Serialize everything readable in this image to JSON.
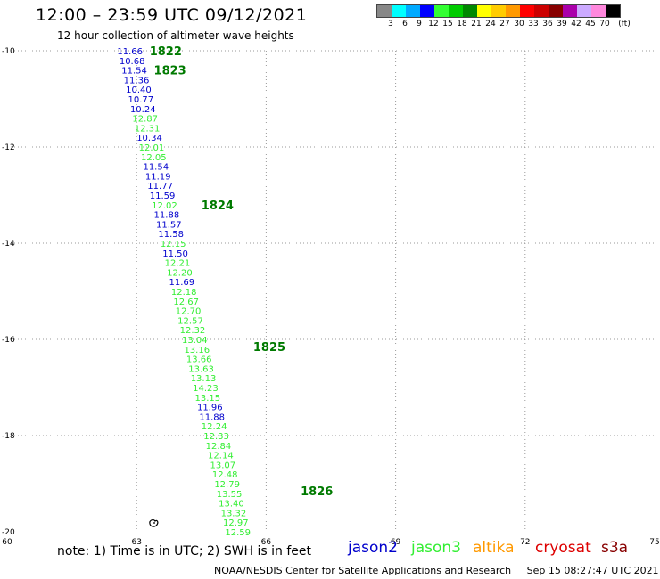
{
  "header": {
    "title": "12:00 – 23:59 UTC 09/12/2021",
    "subtitle": "12 hour collection of altimeter wave heights"
  },
  "scale": {
    "unit": "(ft)",
    "colors": [
      "#888888",
      "#00ffff",
      "#00aaff",
      "#0000ff",
      "#33ff33",
      "#00cc00",
      "#008800",
      "#ffff00",
      "#ffcc00",
      "#ff9900",
      "#ff0000",
      "#cc0000",
      "#880000",
      "#aa00aa",
      "#ccaaff",
      "#ff88dd",
      "#000000"
    ],
    "labels": [
      "3",
      "6",
      "9",
      "12",
      "15",
      "18",
      "21",
      "24",
      "27",
      "30",
      "33",
      "36",
      "39",
      "42",
      "45",
      "70"
    ]
  },
  "axes": {
    "lon_ticks": [
      "60",
      "63",
      "66",
      "69",
      "72",
      "75"
    ],
    "lat_ticks": [
      "-10",
      "-12",
      "-14",
      "-16",
      "-18",
      "-20"
    ]
  },
  "pass_labels": [
    {
      "label": "1822",
      "lon": 63.3,
      "lat": -10.0
    },
    {
      "label": "1823",
      "lon": 63.4,
      "lat": -10.4
    },
    {
      "label": "1824",
      "lon": 64.5,
      "lat": -13.2
    },
    {
      "label": "1825",
      "lon": 65.7,
      "lat": -16.15
    },
    {
      "label": "1826",
      "lon": 66.8,
      "lat": -19.15
    }
  ],
  "readings": [
    {
      "v": "11.66",
      "lon": 62.55,
      "lat": -10.0,
      "sat": "jason2"
    },
    {
      "v": "10.68",
      "lon": 62.6,
      "lat": -10.2,
      "sat": "jason2"
    },
    {
      "v": "11.54",
      "lon": 62.65,
      "lat": -10.4,
      "sat": "jason2"
    },
    {
      "v": "11.36",
      "lon": 62.7,
      "lat": -10.6,
      "sat": "jason2"
    },
    {
      "v": "10.40",
      "lon": 62.75,
      "lat": -10.8,
      "sat": "jason2"
    },
    {
      "v": "10.77",
      "lon": 62.8,
      "lat": -11.0,
      "sat": "jason2"
    },
    {
      "v": "10.24",
      "lon": 62.85,
      "lat": -11.2,
      "sat": "jason2"
    },
    {
      "v": "12.87",
      "lon": 62.9,
      "lat": -11.4,
      "sat": "jason3"
    },
    {
      "v": "12.31",
      "lon": 62.95,
      "lat": -11.6,
      "sat": "jason3"
    },
    {
      "v": "10.34",
      "lon": 63.0,
      "lat": -11.8,
      "sat": "jason2"
    },
    {
      "v": "12.01",
      "lon": 63.05,
      "lat": -12.0,
      "sat": "jason3"
    },
    {
      "v": "12.05",
      "lon": 63.1,
      "lat": -12.2,
      "sat": "jason3"
    },
    {
      "v": "11.54",
      "lon": 63.15,
      "lat": -12.4,
      "sat": "jason2"
    },
    {
      "v": "11.19",
      "lon": 63.2,
      "lat": -12.6,
      "sat": "jason2"
    },
    {
      "v": "11.77",
      "lon": 63.25,
      "lat": -12.8,
      "sat": "jason2"
    },
    {
      "v": "11.59",
      "lon": 63.3,
      "lat": -13.0,
      "sat": "jason2"
    },
    {
      "v": "12.02",
      "lon": 63.35,
      "lat": -13.2,
      "sat": "jason3"
    },
    {
      "v": "11.88",
      "lon": 63.4,
      "lat": -13.4,
      "sat": "jason2"
    },
    {
      "v": "11.57",
      "lon": 63.45,
      "lat": -13.6,
      "sat": "jason2"
    },
    {
      "v": "11.58",
      "lon": 63.5,
      "lat": -13.8,
      "sat": "jason2"
    },
    {
      "v": "12.15",
      "lon": 63.55,
      "lat": -14.0,
      "sat": "jason3"
    },
    {
      "v": "11.50",
      "lon": 63.6,
      "lat": -14.2,
      "sat": "jason2"
    },
    {
      "v": "12.21",
      "lon": 63.65,
      "lat": -14.4,
      "sat": "jason3"
    },
    {
      "v": "12.20",
      "lon": 63.7,
      "lat": -14.6,
      "sat": "jason3"
    },
    {
      "v": "11.69",
      "lon": 63.75,
      "lat": -14.8,
      "sat": "jason2"
    },
    {
      "v": "12.18",
      "lon": 63.8,
      "lat": -15.0,
      "sat": "jason3"
    },
    {
      "v": "12.67",
      "lon": 63.85,
      "lat": -15.2,
      "sat": "jason3"
    },
    {
      "v": "12.70",
      "lon": 63.9,
      "lat": -15.4,
      "sat": "jason3"
    },
    {
      "v": "12.57",
      "lon": 63.95,
      "lat": -15.6,
      "sat": "jason3"
    },
    {
      "v": "12.32",
      "lon": 64.0,
      "lat": -15.8,
      "sat": "jason3"
    },
    {
      "v": "13.04",
      "lon": 64.05,
      "lat": -16.0,
      "sat": "jason3"
    },
    {
      "v": "13.16",
      "lon": 64.1,
      "lat": -16.2,
      "sat": "jason3"
    },
    {
      "v": "13.66",
      "lon": 64.15,
      "lat": -16.4,
      "sat": "jason3"
    },
    {
      "v": "13.63",
      "lon": 64.2,
      "lat": -16.6,
      "sat": "jason3"
    },
    {
      "v": "13.13",
      "lon": 64.25,
      "lat": -16.8,
      "sat": "jason3"
    },
    {
      "v": "14.23",
      "lon": 64.3,
      "lat": -17.0,
      "sat": "jason3"
    },
    {
      "v": "13.15",
      "lon": 64.35,
      "lat": -17.2,
      "sat": "jason3"
    },
    {
      "v": "11.96",
      "lon": 64.4,
      "lat": -17.4,
      "sat": "jason2"
    },
    {
      "v": "11.88",
      "lon": 64.45,
      "lat": -17.6,
      "sat": "jason2"
    },
    {
      "v": "12.24",
      "lon": 64.5,
      "lat": -17.8,
      "sat": "jason3"
    },
    {
      "v": "12.33",
      "lon": 64.55,
      "lat": -18.0,
      "sat": "jason3"
    },
    {
      "v": "12.84",
      "lon": 64.6,
      "lat": -18.2,
      "sat": "jason3"
    },
    {
      "v": "12.14",
      "lon": 64.65,
      "lat": -18.4,
      "sat": "jason3"
    },
    {
      "v": "13.07",
      "lon": 64.7,
      "lat": -18.6,
      "sat": "jason3"
    },
    {
      "v": "12.48",
      "lon": 64.75,
      "lat": -18.8,
      "sat": "jason3"
    },
    {
      "v": "12.79",
      "lon": 64.8,
      "lat": -19.0,
      "sat": "jason3"
    },
    {
      "v": "13.55",
      "lon": 64.85,
      "lat": -19.2,
      "sat": "jason3"
    },
    {
      "v": "13.40",
      "lon": 64.9,
      "lat": -19.4,
      "sat": "jason3"
    },
    {
      "v": "13.32",
      "lon": 64.95,
      "lat": -19.6,
      "sat": "jason3"
    },
    {
      "v": "12.97",
      "lon": 65.0,
      "lat": -19.8,
      "sat": "jason3"
    },
    {
      "v": "12.59",
      "lon": 65.05,
      "lat": -20.0,
      "sat": "jason3"
    }
  ],
  "satellite_colors": {
    "jason2": "#0000cc",
    "jason3": "#33ee33",
    "altika": "#ff9900",
    "cryosat": "#dd0000",
    "s3a": "#880000"
  },
  "legend": {
    "note": "note: 1) Time is in UTC; 2) SWH is in feet",
    "satellites": [
      "jason2",
      "jason3",
      "altika",
      "cryosat",
      "s3a"
    ]
  },
  "footer": {
    "credit": "NOAA/NESDIS Center for Satellite Applications and Research",
    "timestamp": "Sep 15 08:27:47 UTC 2021"
  }
}
